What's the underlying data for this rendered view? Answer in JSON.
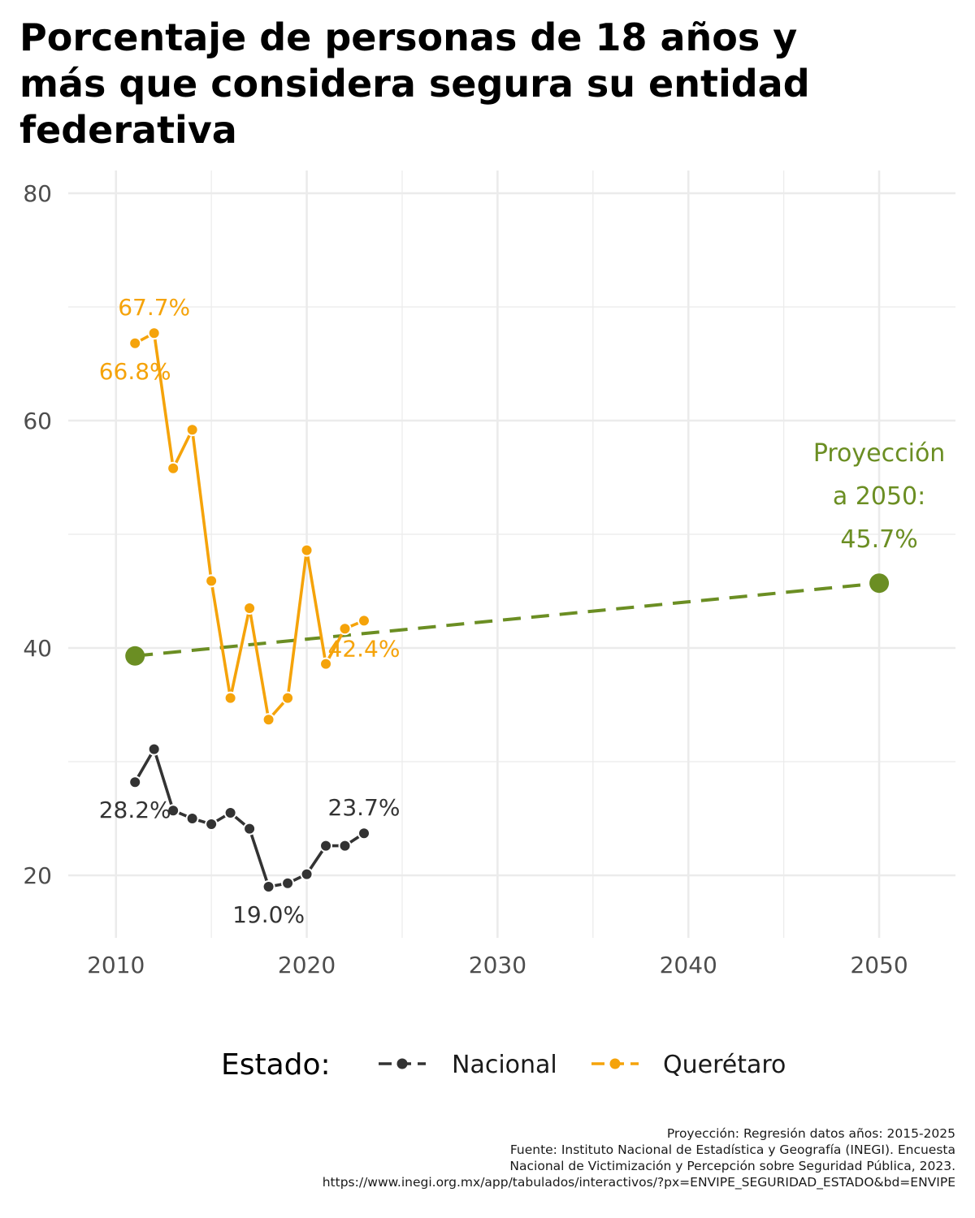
{
  "title": "Porcentaje de personas de 18 años y más que considera segura su entidad federativa",
  "caption": [
    "Proyección: Regresión datos años: 2015-2025",
    "Fuente: Instituto Nacional de Estadística y Geografía (INEGI). Encuesta",
    "Nacional de Victimización y Percepción sobre Seguridad Pública, 2023.",
    "https://www.inegi.org.mx/app/tabulados/interactivos/?px=ENVIPE_SEGURIDAD_ESTADO&bd=ENVIPE"
  ],
  "chart_data": {
    "type": "line",
    "title": "Porcentaje de personas de 18 años y más que considera segura su entidad federativa",
    "xlabel": "",
    "ylabel": "",
    "xlim": [
      2007.5,
      2054
    ],
    "ylim": [
      14.5,
      82
    ],
    "x_ticks": [
      2010,
      2020,
      2030,
      2040,
      2050
    ],
    "y_ticks": [
      20,
      40,
      60,
      80
    ],
    "grid": true,
    "legend": {
      "title": "Estado:",
      "placement": "bottom",
      "entries": [
        "Nacional",
        "Querétaro"
      ]
    },
    "series": [
      {
        "name": "Nacional",
        "color": "#333333",
        "x": [
          2011,
          2012,
          2013,
          2014,
          2015,
          2016,
          2017,
          2018,
          2019,
          2020,
          2021,
          2022,
          2023
        ],
        "y": [
          28.2,
          31.1,
          25.7,
          25.0,
          24.5,
          25.5,
          24.1,
          19.0,
          19.3,
          20.1,
          22.6,
          22.6,
          23.7
        ]
      },
      {
        "name": "Querétaro",
        "color": "#f5a30a",
        "x": [
          2011,
          2012,
          2013,
          2014,
          2015,
          2016,
          2017,
          2018,
          2019,
          2020,
          2021,
          2022,
          2023
        ],
        "y": [
          66.8,
          67.7,
          55.8,
          59.2,
          45.9,
          35.6,
          43.5,
          33.7,
          35.6,
          48.6,
          38.6,
          41.7,
          42.4
        ]
      }
    ],
    "projection": {
      "color": "#6b8e23",
      "x": [
        2011,
        2050
      ],
      "y": [
        39.3,
        45.7
      ],
      "label": [
        "Proyección",
        "a 2050:",
        "45.7%"
      ]
    },
    "annotations": [
      {
        "series": "Querétaro",
        "x": 2012,
        "y": 67.7,
        "text": "67.7%",
        "pos": "above"
      },
      {
        "series": "Querétaro",
        "x": 2011,
        "y": 66.8,
        "text": "66.8%",
        "pos": "below"
      },
      {
        "series": "Querétaro",
        "x": 2023,
        "y": 42.4,
        "text": "42.4%",
        "pos": "below"
      },
      {
        "series": "Nacional",
        "x": 2011,
        "y": 28.2,
        "text": "28.2%",
        "pos": "below"
      },
      {
        "series": "Nacional",
        "x": 2023,
        "y": 23.7,
        "text": "23.7%",
        "pos": "above"
      },
      {
        "series": "Nacional",
        "x": 2018,
        "y": 19.0,
        "text": "19.0%",
        "pos": "below"
      }
    ]
  }
}
